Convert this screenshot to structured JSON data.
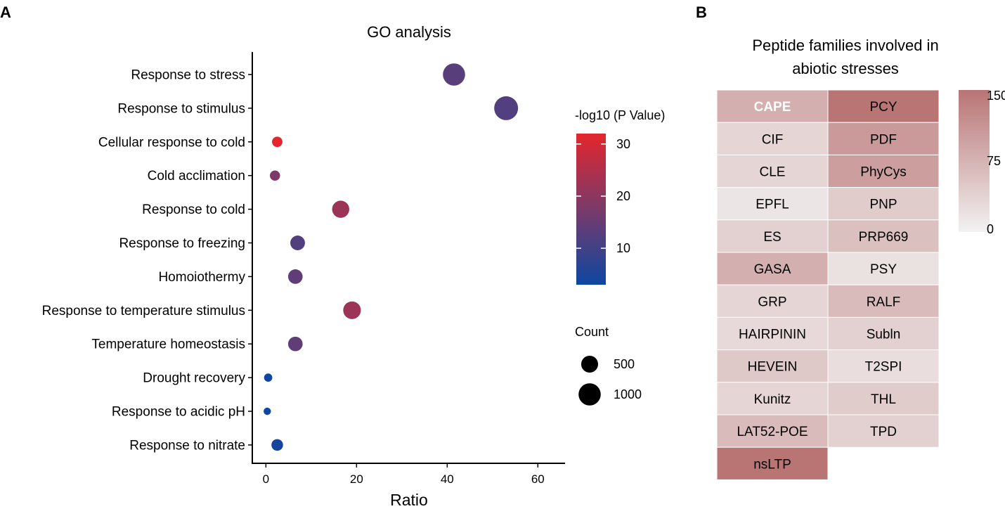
{
  "panel_a": {
    "letter": "A",
    "chart_data": {
      "type": "scatter",
      "title": "GO analysis",
      "xlabel": "Ratio",
      "ylabel": "",
      "xlim": [
        -3,
        66
      ],
      "xticks": [
        0,
        20,
        40,
        60
      ],
      "xtick_labels": [
        "0",
        "20",
        "40",
        "60"
      ],
      "categories": [
        "Response to stress",
        "Response to stimulus",
        "Cellular response to cold",
        "Cold acclimation",
        "Response to cold",
        "Response to freezing",
        "Homoiothermy",
        "Response to temperature stimulus",
        "Temperature homeostasis",
        "Drought recovery",
        "Response to acidic pH",
        "Response to nitrate"
      ],
      "points": [
        {
          "category": "Response to stress",
          "ratio": 41.5,
          "count": 1000,
          "neglog10p": 13
        },
        {
          "category": "Response to stimulus",
          "ratio": 53,
          "count": 1200,
          "neglog10p": 12
        },
        {
          "category": "Cellular response to cold",
          "ratio": 2.5,
          "count": 120,
          "neglog10p": 32
        },
        {
          "category": "Cold acclimation",
          "ratio": 2,
          "count": 110,
          "neglog10p": 18
        },
        {
          "category": "Response to cold",
          "ratio": 16.5,
          "count": 520,
          "neglog10p": 22
        },
        {
          "category": "Response to freezing",
          "ratio": 7,
          "count": 340,
          "neglog10p": 12
        },
        {
          "category": "Homoiothermy",
          "ratio": 6.5,
          "count": 330,
          "neglog10p": 14
        },
        {
          "category": "Response to temperature stimulus",
          "ratio": 19,
          "count": 560,
          "neglog10p": 22
        },
        {
          "category": "Temperature homeostasis",
          "ratio": 6.5,
          "count": 330,
          "neglog10p": 14
        },
        {
          "category": "Drought recovery",
          "ratio": 0.5,
          "count": 50,
          "neglog10p": 3
        },
        {
          "category": "Response to acidic pH",
          "ratio": 0.3,
          "count": 30,
          "neglog10p": 3
        },
        {
          "category": "Response to nitrate",
          "ratio": 2.5,
          "count": 170,
          "neglog10p": 4
        }
      ],
      "color_legend": {
        "title": "-log10 (P Value)",
        "min": 3,
        "max": 32,
        "ticks": [
          10,
          20,
          30
        ],
        "tick_labels": [
          "10",
          "20",
          "30"
        ],
        "low_color": "#0d47a1",
        "mid_color": "#7a3a6a",
        "high_color": "#e3262d"
      },
      "size_legend": {
        "title": "Count",
        "values": [
          500,
          1000
        ],
        "labels": [
          "500",
          "1000"
        ]
      }
    }
  },
  "panel_b": {
    "letter": "B",
    "chart_data": {
      "type": "heatmap",
      "title_lines": [
        "Peptide families involved in",
        "abiotic stresses"
      ],
      "columns": [
        [
          {
            "label": "CAPE",
            "value": 80,
            "bold_white": true
          },
          {
            "label": "CIF",
            "value": 35
          },
          {
            "label": "CLE",
            "value": 35
          },
          {
            "label": "EPFL",
            "value": 15
          },
          {
            "label": "ES",
            "value": 40
          },
          {
            "label": "GASA",
            "value": 80
          },
          {
            "label": "GRP",
            "value": 35
          },
          {
            "label": "HAIRPININ",
            "value": 30
          },
          {
            "label": "HEVEIN",
            "value": 50
          },
          {
            "label": "Kunitz",
            "value": 35
          },
          {
            "label": "LAT52-POE",
            "value": 65
          },
          {
            "label": "nsLTP",
            "value": 150
          }
        ],
        [
          {
            "label": "PCY",
            "value": 150
          },
          {
            "label": "PDF",
            "value": 105
          },
          {
            "label": "PhyCys",
            "value": 100
          },
          {
            "label": "PNP",
            "value": 45
          },
          {
            "label": "PRP669",
            "value": 60
          },
          {
            "label": "PSY",
            "value": 20
          },
          {
            "label": "RALF",
            "value": 65
          },
          {
            "label": "Subln",
            "value": 40
          },
          {
            "label": "T2SPI",
            "value": 25
          },
          {
            "label": "THL",
            "value": 45
          },
          {
            "label": "TPD",
            "value": 40
          }
        ]
      ],
      "color_scale": {
        "min": 0,
        "max": 150,
        "ticks": [
          0,
          75,
          150
        ],
        "tick_labels": [
          "0",
          "75",
          "150"
        ],
        "low_color": "#f2f2f2",
        "high_color": "#b97474"
      }
    }
  }
}
